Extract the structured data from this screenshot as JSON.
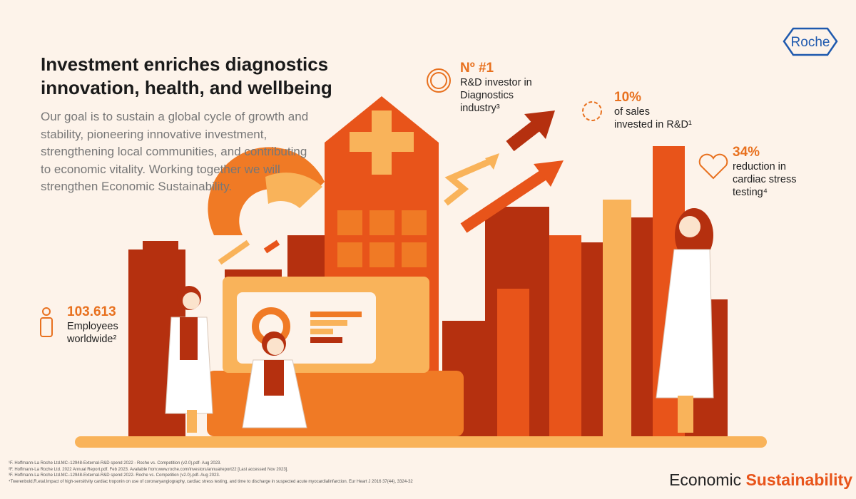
{
  "logo": "Roche",
  "header": {
    "title_lines": [
      "Investment enriches diagnostics",
      "innovation, health, and wellbeing"
    ],
    "body_lines": [
      "Our goal is to sustain a global cycle of growth and",
      "stability, pioneering innovative investment,",
      "strengthening local communities, and contributing",
      "to economic vitality. Working together we will",
      "strengthen Economic Sustainability."
    ]
  },
  "stats": [
    {
      "value": "Nº #1",
      "label_lines": [
        "R&D investor in",
        "Diagnostics",
        "industry³"
      ]
    },
    {
      "value": "10%",
      "label_lines": [
        "of sales",
        "invested in R&D¹"
      ]
    },
    {
      "value": "34%",
      "label_lines": [
        "reduction in",
        "cardiac stress",
        "testing⁴"
      ]
    },
    {
      "value": "103.613",
      "label_lines": [
        "Employees",
        "worldwide²"
      ]
    }
  ],
  "footnotes": [
    "¹F. Hoffmann-La Roche Ltd.MC–12948-External-R&D spend 2022 - Roche vs. Competition (v2.0).pdf- Aug 2023.",
    "²F. Hoffmann-La Roche Ltd. 2022 Annual Report.pdf. Feb 2023. Available from:www.roche.com/investors/annualreport22 [Last accessed Nov 2023].",
    "³F. Hoffmann-La Roche Ltd.MC–12948-External-R&D spend 2022- Roche vs. Competition (v2.0).pdf- Aug 2023.",
    "⁴Twerenbold,R.etal.Impact of high-sensitivity cardiac troponin on use of coronaryangiography, cardiac stress testing, and time to discharge in suspected acute myocardialinfarction. Eur Heart J 2016 37(44), 3324-32"
  ],
  "footer": {
    "first": "Economic",
    "second": "Sustainability"
  }
}
